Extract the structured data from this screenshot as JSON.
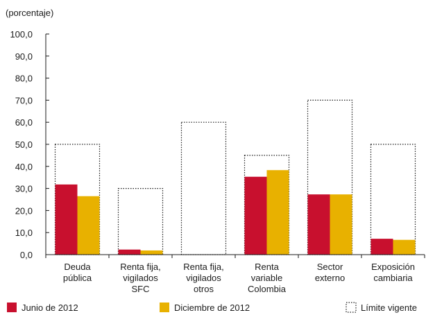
{
  "chart_data": {
    "type": "bar",
    "title": "",
    "unit_label": "(porcentaje)",
    "xlabel": "",
    "ylabel": "",
    "ylim": [
      0,
      100
    ],
    "y_ticks": [
      "0,0",
      "10,0",
      "20,0",
      "30,0",
      "40,0",
      "50,0",
      "60,0",
      "70,0",
      "80,0",
      "90,0",
      "100,0"
    ],
    "categories": [
      [
        "Deuda",
        "pública"
      ],
      [
        "Renta fija,",
        "vigilados",
        "SFC"
      ],
      [
        "Renta fija,",
        "vigilados",
        "otros"
      ],
      [
        "Renta",
        "variable",
        "Colombia"
      ],
      [
        "Sector",
        "externo"
      ],
      [
        "Exposición",
        "cambiaria"
      ]
    ],
    "series": [
      {
        "name": "Junio de 2012",
        "color": "#c8102e",
        "values": [
          31.8,
          2.3,
          0.1,
          35.3,
          27.3,
          7.2
        ]
      },
      {
        "name": "Diciembre de 2012",
        "color": "#e8b100",
        "values": [
          26.5,
          1.9,
          0.1,
          38.3,
          27.3,
          6.7
        ]
      }
    ],
    "limit": {
      "name": "Límite vigente",
      "values": [
        50,
        30,
        60,
        45,
        70,
        50
      ]
    },
    "grid": false,
    "legend_position": "bottom"
  }
}
